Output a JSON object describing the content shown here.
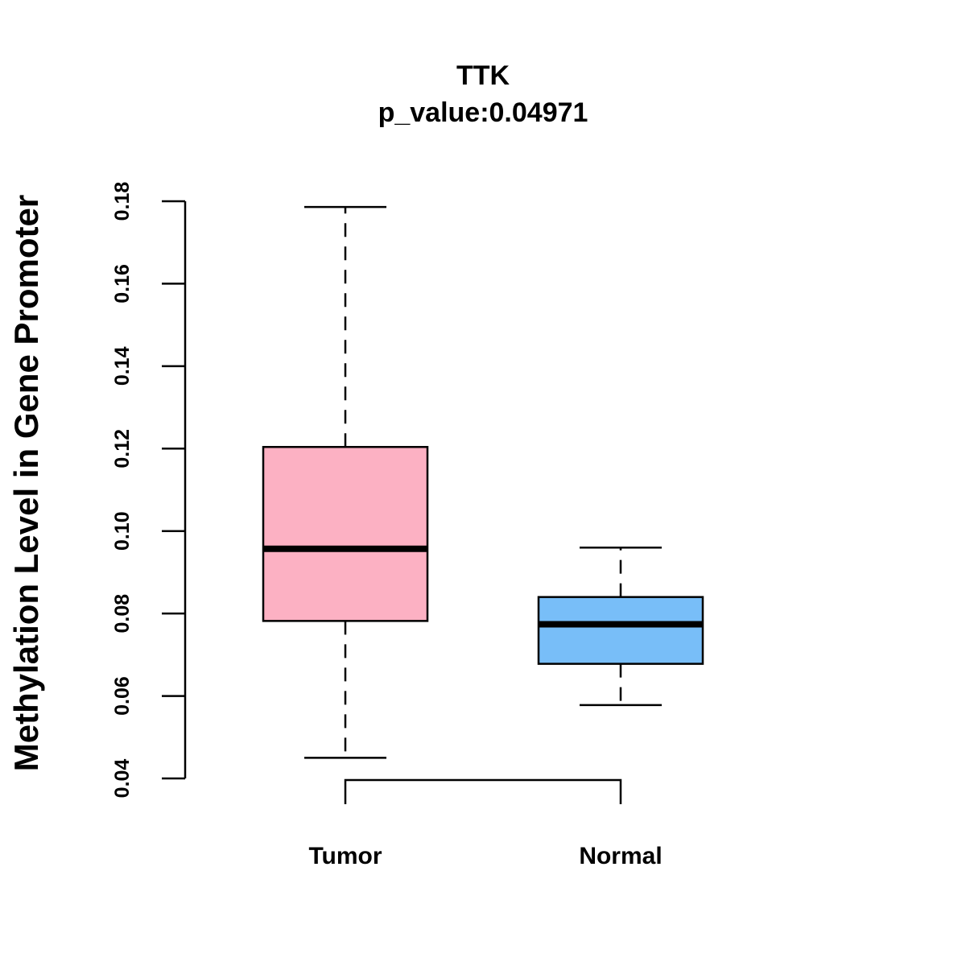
{
  "chart_data": {
    "type": "boxplot",
    "title": "TTK",
    "subtitle": "p_value:0.04971",
    "ylabel": "Methylation Level in Gene Promoter",
    "xlabel": "",
    "ylim": [
      0.04,
      0.18
    ],
    "yticks": [
      "0.04",
      "0.06",
      "0.08",
      "0.10",
      "0.12",
      "0.14",
      "0.16",
      "0.18"
    ],
    "categories": [
      "Tumor",
      "Normal"
    ],
    "boxes": [
      {
        "category": "Tumor",
        "whisker_low": 0.045,
        "q1": 0.0782,
        "median": 0.0957,
        "q3": 0.1204,
        "whisker_high": 0.1786,
        "color": "#FCB1C3"
      },
      {
        "category": "Normal",
        "whisker_low": 0.0578,
        "q1": 0.0678,
        "median": 0.0774,
        "q3": 0.084,
        "whisker_high": 0.096,
        "color": "#78BEF8"
      }
    ],
    "comparison_bracket": [
      "Tumor",
      "Normal"
    ],
    "grid": false,
    "legend": "none"
  }
}
